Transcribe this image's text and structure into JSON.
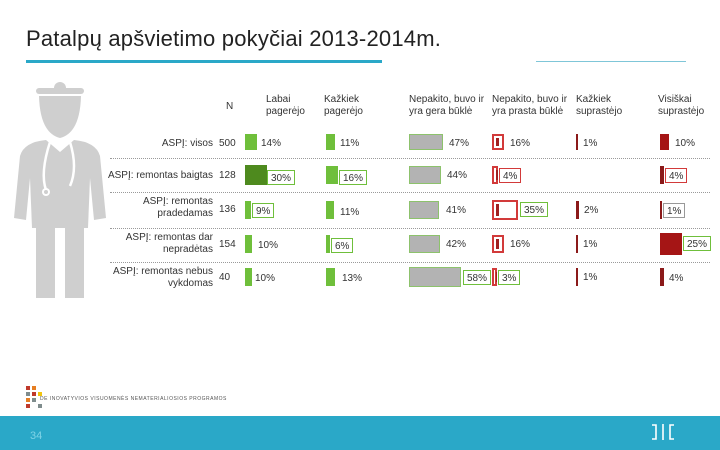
{
  "slide": {
    "title": "Patalpų apšvietimo pokyčiai 2013-2014m.",
    "page_number": "34"
  },
  "header": {
    "n": "N",
    "columns": [
      "Labai pagerėjo",
      "Kažkiek pagerėjo",
      "Nepakito, buvo ir yra gera būklė",
      "Nepakito, buvo ir yra prasta būklė",
      "Kažkiek suprastėjo",
      "Visiškai suprastėjo"
    ]
  },
  "rows": [
    {
      "label": "ASPĮ: visos",
      "n": "500",
      "values": [
        "14%",
        "11%",
        "47%",
        "16%",
        "1%",
        "10%"
      ]
    },
    {
      "label": "ASPĮ: remontas baigtas",
      "n": "128",
      "values": [
        "30%",
        "16%",
        "44%",
        "4%",
        "",
        "4%"
      ]
    },
    {
      "label": "ASPĮ: remontas pradedamas",
      "n": "136",
      "values": [
        "9%",
        "11%",
        "41%",
        "35%",
        "2%",
        "1%"
      ]
    },
    {
      "label": "ASPĮ: remontas dar nepradėtas",
      "n": "154",
      "values": [
        "10%",
        "6%",
        "42%",
        "16%",
        "1%",
        "25%"
      ]
    },
    {
      "label": "ASPĮ: remontas nebus vykdomas",
      "n": "40",
      "values": [
        "10%",
        "13%",
        "58%",
        "3%",
        "1%",
        "4%"
      ]
    }
  ],
  "logo": {
    "caption": "DE INOVATYVIOS VISUOMENĖS NEMATERIALIOSIOS PROGRAMOS"
  },
  "colors": {
    "accent": "#2aa8c8",
    "green_dark": "#4e8a1e",
    "green_light": "#6fbf3b",
    "grey": "#b3b3b3",
    "red": "#d23a3a",
    "dark_red": "#a51515"
  }
}
